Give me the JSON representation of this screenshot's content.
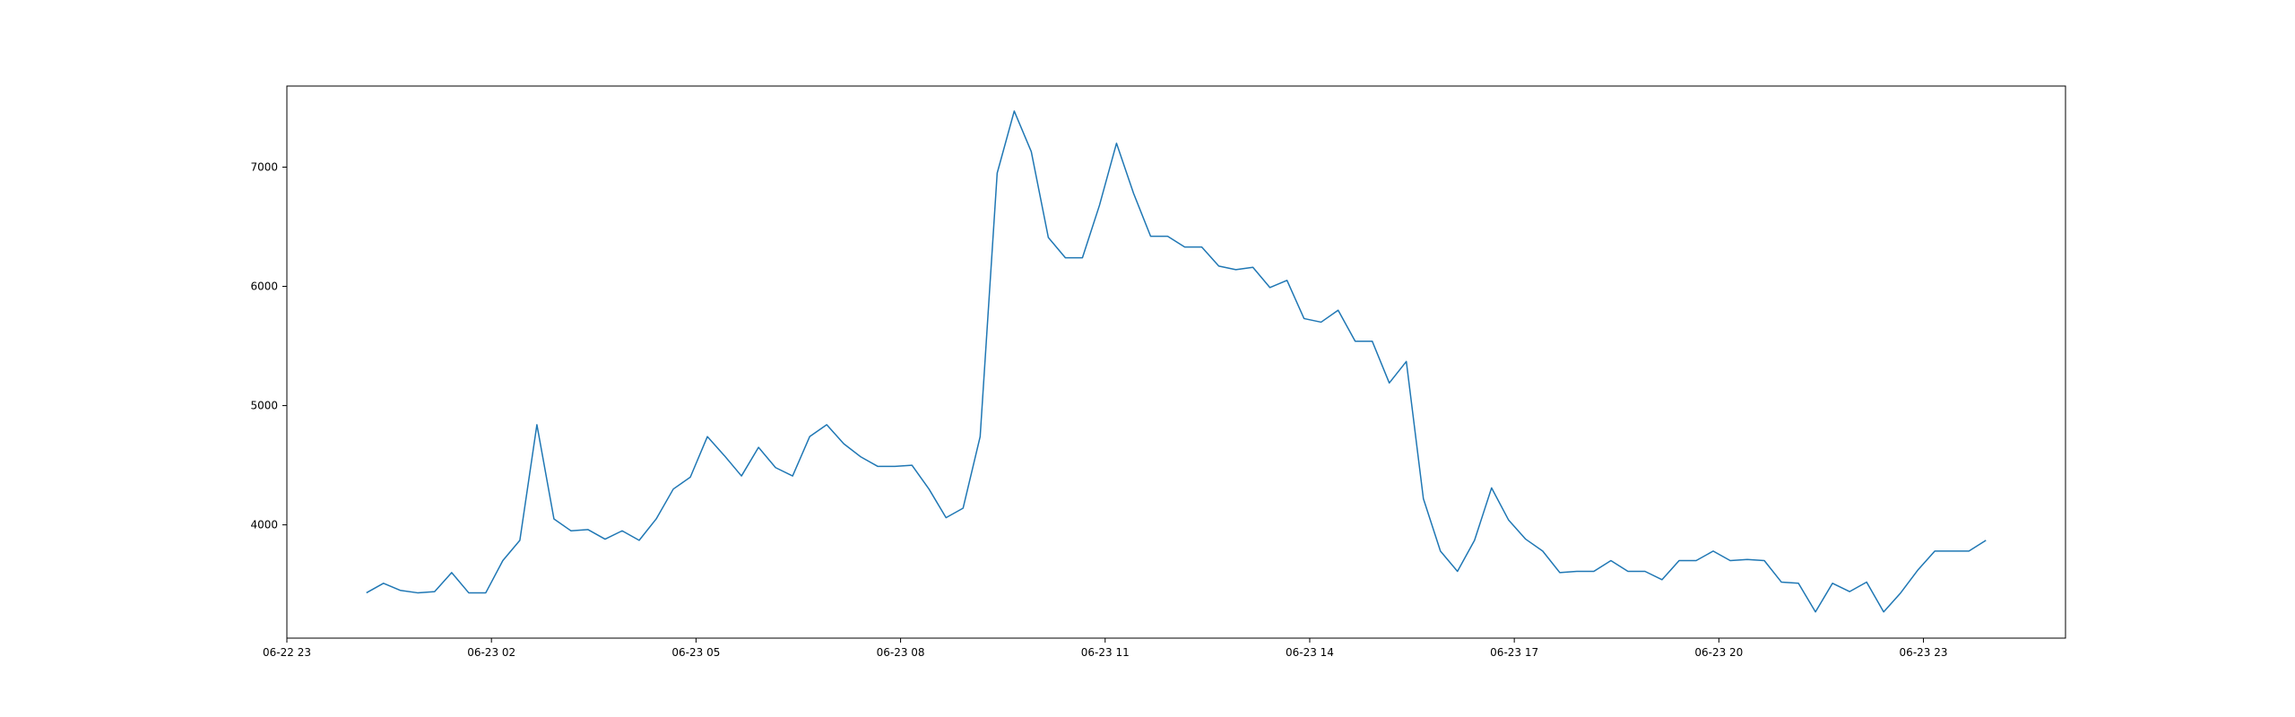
{
  "chart_data": {
    "type": "line",
    "title": "",
    "xlabel": "",
    "ylabel": "",
    "x_tick_labels": [
      "06-22 23",
      "06-23 02",
      "06-23 05",
      "06-23 08",
      "06-23 11",
      "06-23 14",
      "06-23 17",
      "06-23 20",
      "06-23 23"
    ],
    "y_tick_labels": [
      "4000",
      "5000",
      "6000",
      "7000"
    ],
    "y_ticks": [
      4000,
      5000,
      6000,
      7000
    ],
    "ylim": [
      3050,
      7680
    ],
    "xlim": [
      "2023-06-22 23:00",
      "2023-06-24 01:05"
    ],
    "grid": false,
    "color": "#1f77b4",
    "series": [
      {
        "x": [
          "2023-06-23 00:10",
          "2023-06-23 00:25",
          "2023-06-23 00:40",
          "2023-06-23 00:55",
          "2023-06-23 01:10",
          "2023-06-23 01:25",
          "2023-06-23 01:40",
          "2023-06-23 01:55",
          "2023-06-23 02:10",
          "2023-06-23 02:25",
          "2023-06-23 02:40",
          "2023-06-23 02:55",
          "2023-06-23 03:10",
          "2023-06-23 03:25",
          "2023-06-23 03:40",
          "2023-06-23 03:55",
          "2023-06-23 04:10",
          "2023-06-23 04:25",
          "2023-06-23 04:40",
          "2023-06-23 04:55",
          "2023-06-23 05:10",
          "2023-06-23 05:25",
          "2023-06-23 05:40",
          "2023-06-23 05:55",
          "2023-06-23 06:10",
          "2023-06-23 06:25",
          "2023-06-23 06:40",
          "2023-06-23 06:55",
          "2023-06-23 07:10",
          "2023-06-23 07:25",
          "2023-06-23 07:40",
          "2023-06-23 07:55",
          "2023-06-23 08:10",
          "2023-06-23 08:25",
          "2023-06-23 08:40",
          "2023-06-23 08:55",
          "2023-06-23 09:10",
          "2023-06-23 09:25",
          "2023-06-23 09:40",
          "2023-06-23 09:55",
          "2023-06-23 10:10",
          "2023-06-23 10:25",
          "2023-06-23 10:40",
          "2023-06-23 10:55",
          "2023-06-23 11:10",
          "2023-06-23 11:25",
          "2023-06-23 11:40",
          "2023-06-23 11:55",
          "2023-06-23 12:10",
          "2023-06-23 12:25",
          "2023-06-23 12:40",
          "2023-06-23 12:55",
          "2023-06-23 13:10",
          "2023-06-23 13:25",
          "2023-06-23 13:40",
          "2023-06-23 13:55",
          "2023-06-23 14:10",
          "2023-06-23 14:25",
          "2023-06-23 14:40",
          "2023-06-23 14:55",
          "2023-06-23 15:10",
          "2023-06-23 15:25",
          "2023-06-23 15:40",
          "2023-06-23 15:55",
          "2023-06-23 16:10",
          "2023-06-23 16:25",
          "2023-06-23 16:40",
          "2023-06-23 16:55",
          "2023-06-23 17:10",
          "2023-06-23 17:25",
          "2023-06-23 17:40",
          "2023-06-23 17:55",
          "2023-06-23 18:10",
          "2023-06-23 18:25",
          "2023-06-23 18:40",
          "2023-06-23 18:55",
          "2023-06-23 19:10",
          "2023-06-23 19:25",
          "2023-06-23 19:40",
          "2023-06-23 19:55",
          "2023-06-23 20:10",
          "2023-06-23 20:25",
          "2023-06-23 20:40",
          "2023-06-23 20:55",
          "2023-06-23 21:10",
          "2023-06-23 21:25",
          "2023-06-23 21:40",
          "2023-06-23 21:55",
          "2023-06-23 22:10",
          "2023-06-23 22:25",
          "2023-06-23 22:40",
          "2023-06-23 22:55",
          "2023-06-23 23:10",
          "2023-06-23 23:25",
          "2023-06-23 23:40",
          "2023-06-23 23:55"
        ],
        "y": [
          3430,
          3510,
          3450,
          3430,
          3440,
          3600,
          3430,
          3430,
          3700,
          3870,
          4840,
          4050,
          3950,
          3960,
          3880,
          3950,
          3870,
          4050,
          4300,
          4400,
          4740,
          4580,
          4410,
          4650,
          4480,
          4410,
          4740,
          4840,
          4680,
          4570,
          4490,
          4490,
          4500,
          4300,
          4060,
          4140,
          4740,
          6950,
          7470,
          7130,
          6410,
          6240,
          6240,
          6680,
          7200,
          6780,
          6420,
          6420,
          6330,
          6330,
          6170,
          6140,
          6160,
          5990,
          6050,
          5730,
          5700,
          5800,
          5540,
          5540,
          5190,
          5370,
          4220,
          3780,
          3610,
          3870,
          4310,
          4040,
          3880,
          3780,
          3600,
          3610,
          3610,
          3700,
          3610,
          3610,
          3540,
          3700,
          3700,
          3780,
          3700,
          3710,
          3700,
          3520,
          3510,
          3270,
          3510,
          3440,
          3520,
          3270,
          3430,
          3620,
          3780,
          3780,
          3780,
          3870
        ]
      }
    ]
  }
}
